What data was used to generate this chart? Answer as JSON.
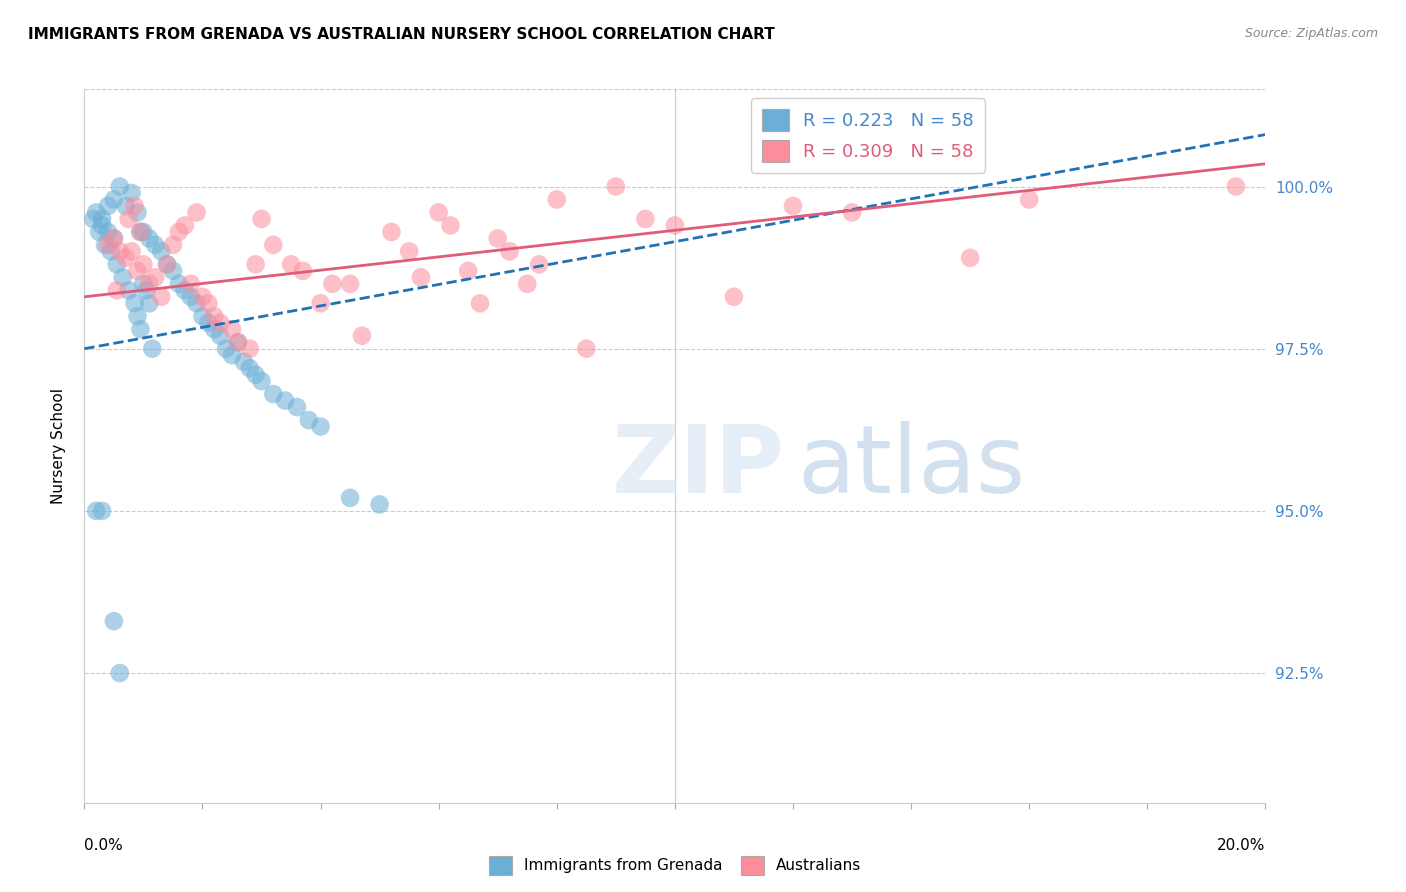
{
  "title": "IMMIGRANTS FROM GRENADA VS AUSTRALIAN NURSERY SCHOOL CORRELATION CHART",
  "source": "Source: ZipAtlas.com",
  "ylabel": "Nursery School",
  "ytick_values": [
    92.5,
    95.0,
    97.5,
    100.0
  ],
  "xlim": [
    0.0,
    20.0
  ],
  "ylim": [
    90.5,
    101.5
  ],
  "legend_blue_R": "R = 0.223",
  "legend_blue_N": "N = 58",
  "legend_pink_R": "R = 0.309",
  "legend_pink_N": "N = 58",
  "blue_color": "#6baed6",
  "pink_color": "#fc8d9b",
  "blue_line_color": "#2171b5",
  "pink_line_color": "#e05c7a",
  "blue_scatter_x": [
    0.15,
    0.2,
    0.25,
    0.3,
    0.3,
    0.35,
    0.4,
    0.4,
    0.45,
    0.5,
    0.5,
    0.55,
    0.6,
    0.65,
    0.7,
    0.75,
    0.8,
    0.85,
    0.9,
    0.9,
    0.95,
    0.95,
    1.0,
    1.0,
    1.05,
    1.1,
    1.1,
    1.15,
    1.2,
    1.3,
    1.4,
    1.5,
    1.6,
    1.7,
    1.8,
    1.9,
    2.0,
    2.1,
    2.2,
    2.3,
    2.4,
    2.5,
    2.6,
    2.7,
    2.8,
    2.9,
    3.0,
    3.2,
    3.4,
    3.6,
    3.8,
    4.0,
    4.5,
    5.0,
    0.2,
    0.3,
    0.5,
    0.6
  ],
  "blue_scatter_y": [
    99.5,
    99.6,
    99.3,
    99.5,
    99.4,
    99.1,
    99.3,
    99.7,
    99.0,
    99.8,
    99.2,
    98.8,
    100.0,
    98.6,
    99.7,
    98.4,
    99.9,
    98.2,
    99.6,
    98.0,
    99.3,
    97.8,
    99.3,
    98.5,
    98.4,
    99.2,
    98.2,
    97.5,
    99.1,
    99.0,
    98.8,
    98.7,
    98.5,
    98.4,
    98.3,
    98.2,
    98.0,
    97.9,
    97.8,
    97.7,
    97.5,
    97.4,
    97.6,
    97.3,
    97.2,
    97.1,
    97.0,
    96.8,
    96.7,
    96.6,
    96.4,
    96.3,
    95.2,
    95.1,
    95.0,
    95.0,
    93.3,
    92.5
  ],
  "pink_scatter_x": [
    0.4,
    0.5,
    0.55,
    0.6,
    0.7,
    0.75,
    0.8,
    0.85,
    0.9,
    0.95,
    1.0,
    1.1,
    1.2,
    1.3,
    1.4,
    1.5,
    1.6,
    1.7,
    1.8,
    1.9,
    2.0,
    2.1,
    2.2,
    2.3,
    2.5,
    2.6,
    2.8,
    2.9,
    3.0,
    3.2,
    3.5,
    3.7,
    4.0,
    4.2,
    4.5,
    4.7,
    5.2,
    5.5,
    5.7,
    6.0,
    6.2,
    6.5,
    6.7,
    7.0,
    7.2,
    7.5,
    7.7,
    8.0,
    8.5,
    9.0,
    9.5,
    10.0,
    11.0,
    12.0,
    13.0,
    15.0,
    16.0,
    19.5
  ],
  "pink_scatter_y": [
    99.1,
    99.2,
    98.4,
    99.0,
    98.9,
    99.5,
    99.0,
    99.7,
    98.7,
    99.3,
    98.8,
    98.5,
    98.6,
    98.3,
    98.8,
    99.1,
    99.3,
    99.4,
    98.5,
    99.6,
    98.3,
    98.2,
    98.0,
    97.9,
    97.8,
    97.6,
    97.5,
    98.8,
    99.5,
    99.1,
    98.8,
    98.7,
    98.2,
    98.5,
    98.5,
    97.7,
    99.3,
    99.0,
    98.6,
    99.6,
    99.4,
    98.7,
    98.2,
    99.2,
    99.0,
    98.5,
    98.8,
    99.8,
    97.5,
    100.0,
    99.5,
    99.4,
    98.3,
    99.7,
    99.6,
    98.9,
    99.8,
    100.0
  ],
  "blue_line_x0": 0.0,
  "blue_line_y0": 97.5,
  "blue_line_x1": 20.0,
  "blue_line_y1": 100.8,
  "pink_line_x0": 0.0,
  "pink_line_y0": 98.3,
  "pink_line_x1": 20.0,
  "pink_line_y1": 100.35
}
